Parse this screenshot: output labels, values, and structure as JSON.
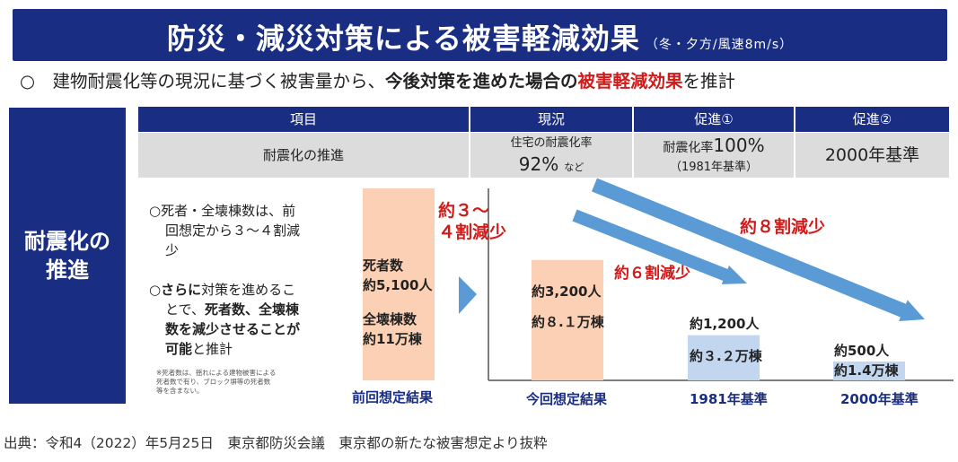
{
  "title": "防災・減災対策による被害軽減効果",
  "title_note": "（冬・夕方/風速8m/s）",
  "summary": {
    "prefix": "○　建物耐震化等の現況に基づく被害量から、",
    "bold": "今後対策を進めた場合の",
    "red": "被害軽減効果",
    "suffix": "を推計"
  },
  "side_label_line1": "耐震化の",
  "side_label_line2": "推進",
  "table": {
    "headers": [
      "項目",
      "現況",
      "促進①",
      "促進②"
    ],
    "row_label": "耐震化の推進",
    "current_line1": "住宅の耐震化率",
    "current_value": "92%",
    "current_suffix": "など",
    "promo1_prefix": "耐震化率",
    "promo1_value": "100%",
    "promo1_sub": "（1981年基準）",
    "promo2": "2000年基準"
  },
  "notes": {
    "note1_l1": "○死者・全壊棟数は、前",
    "note1_l2": "回想定から３～４割減",
    "note1_l3": "少",
    "note2_l1_bold": "○さらに",
    "note2_l1": "対策を進めるこ",
    "note2_l2a": "とで、",
    "note2_l2b": "死者数、全壊棟",
    "note2_l3": "数を減少させることが",
    "note2_l4_bold": "可能",
    "note2_l4": "と推計",
    "fine_l1": "※死者数は、揺れによる建物被害による",
    "fine_l2": "死者数で有り、ブロック塀等の死者数",
    "fine_l3": "等を含まない。"
  },
  "chart_data": {
    "type": "bar",
    "categories": [
      "前回想定結果",
      "今回想定結果",
      "1981年基準",
      "2000年基準"
    ],
    "series": [
      {
        "name": "死者数（人）",
        "values": [
          5100,
          3200,
          1200,
          500
        ]
      },
      {
        "name": "全壊棟数（万棟）",
        "values": [
          11,
          8.1,
          3.2,
          1.4
        ]
      }
    ],
    "bar_labels": [
      [
        "死者数",
        "約5,100人",
        "全壊棟数",
        "約11万棟"
      ],
      [
        "約3,200人",
        "約８.１万棟"
      ],
      [
        "約1,200人",
        "約３.２万棟"
      ],
      [
        "約500人",
        "約1.4万棟"
      ]
    ],
    "annotations": [
      "約３～",
      "４割減少",
      "約６割減少",
      "約８割減少"
    ],
    "colors": {
      "peach": "#fbd0b4",
      "blue": "#c3d6ef",
      "arrow": "#5b9bd5",
      "navy": "#192d83",
      "red": "#d11b1b"
    }
  },
  "source": "出典：令和4（2022）年5月25日　東京都防災会議　東京都の新たな被害想定より抜粋"
}
